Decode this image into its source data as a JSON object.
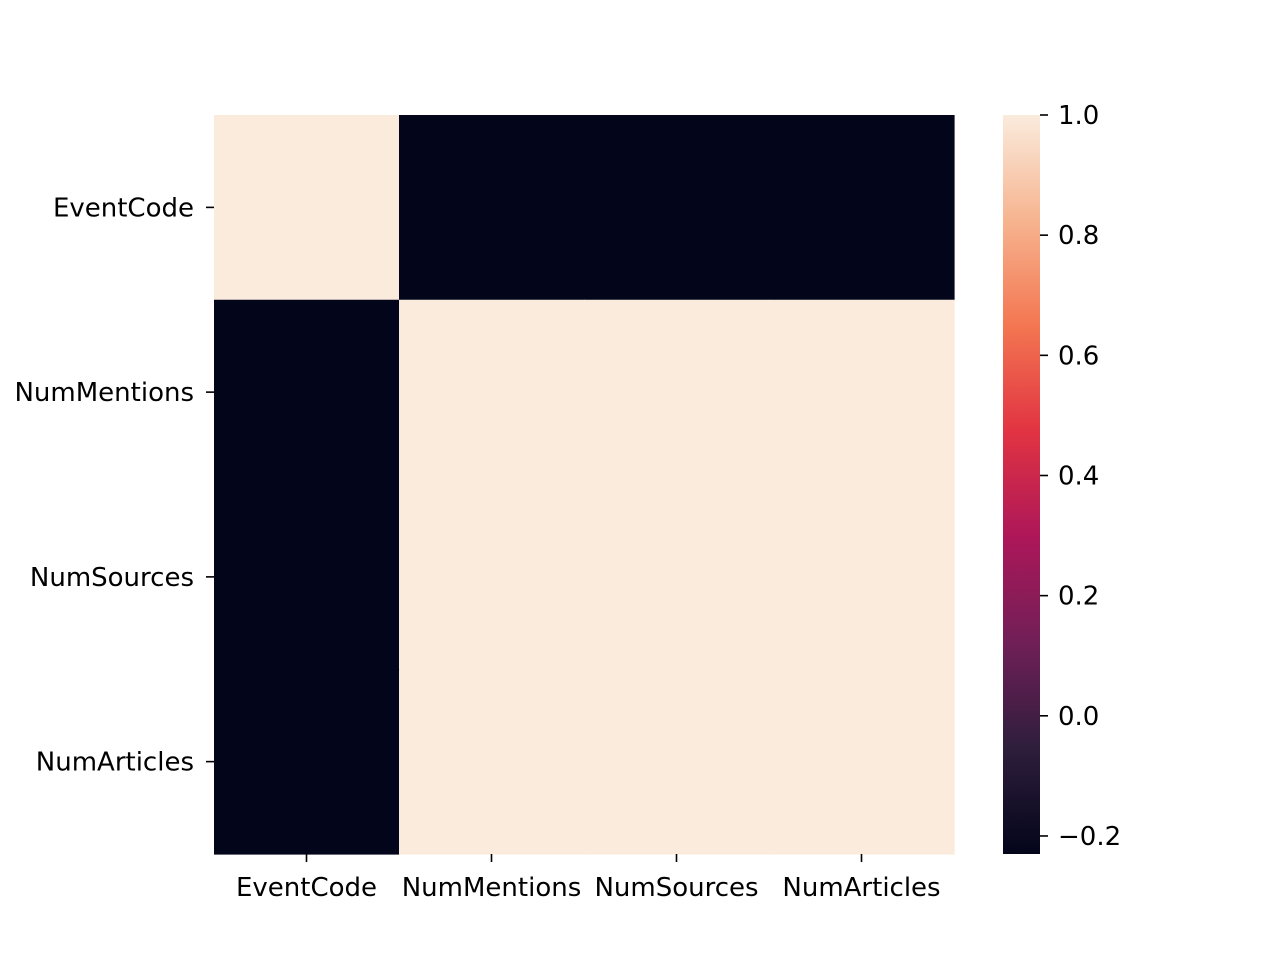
{
  "chart_data": {
    "type": "heatmap",
    "title": "",
    "xlabel": "",
    "ylabel": "",
    "x_categories": [
      "EventCode",
      "NumMentions",
      "NumSources",
      "NumArticles"
    ],
    "y_categories": [
      "EventCode",
      "NumMentions",
      "NumSources",
      "NumArticles"
    ],
    "values": [
      [
        1.0,
        -0.23,
        -0.23,
        -0.23
      ],
      [
        -0.23,
        1.0,
        1.0,
        1.0
      ],
      [
        -0.23,
        1.0,
        1.0,
        1.0
      ],
      [
        -0.23,
        1.0,
        1.0,
        1.0
      ]
    ],
    "colorbar": {
      "range": [
        -0.23,
        1.0
      ],
      "ticks": [
        -0.2,
        0.0,
        0.2,
        0.4,
        0.6,
        0.8,
        1.0
      ],
      "tick_labels": [
        "−0.2",
        "0.0",
        "0.2",
        "0.4",
        "0.6",
        "0.8",
        "1.0"
      ],
      "colormap": "rocket",
      "colors": [
        "#03051a",
        "#2e1e3c",
        "#701f57",
        "#ad1759",
        "#e13342",
        "#f37651",
        "#f6b48f",
        "#faebdd"
      ]
    },
    "grid": false,
    "legend": "colorbar-right"
  }
}
